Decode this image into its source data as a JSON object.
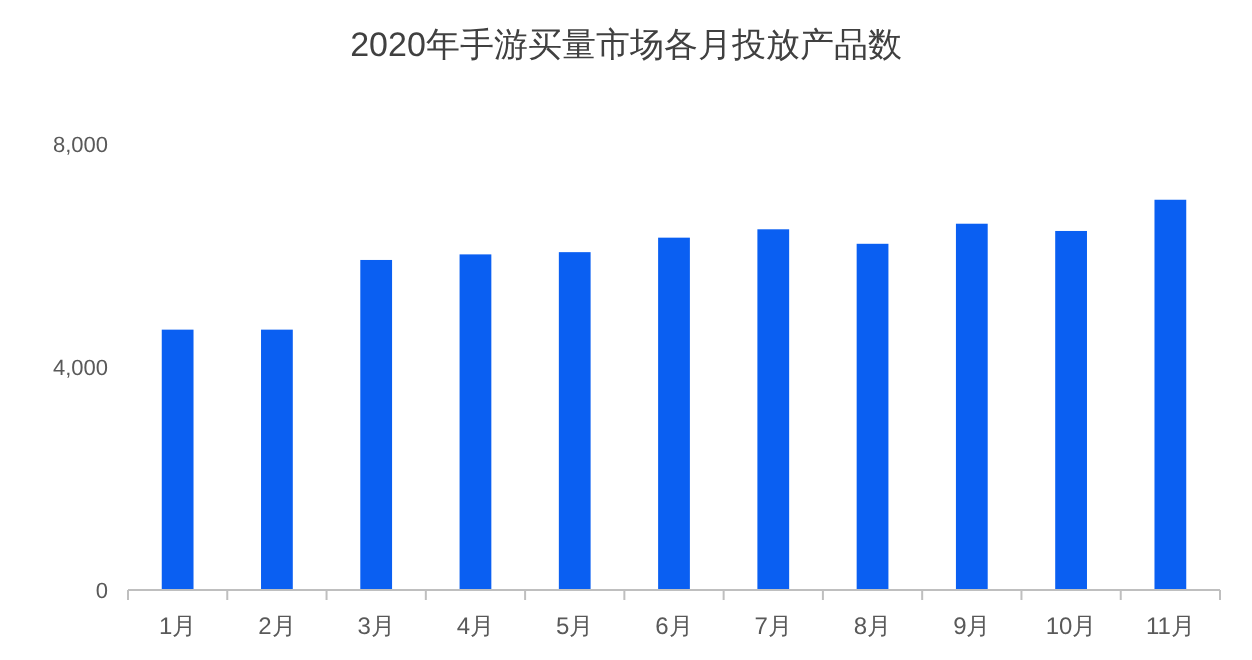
{
  "chart_data": {
    "type": "bar",
    "title": "2020年手游买量市场各月投放产品数",
    "categories": [
      "1月",
      "2月",
      "3月",
      "4月",
      "5月",
      "6月",
      "7月",
      "8月",
      "9月",
      "10月",
      "11月"
    ],
    "values": [
      4670,
      4670,
      5920,
      6020,
      6060,
      6320,
      6470,
      6210,
      6570,
      6440,
      7000
    ],
    "color": "#0a5ff2",
    "ylim": [
      0,
      8000
    ],
    "yticks": [
      {
        "value": 0,
        "label": "0"
      },
      {
        "value": 4000,
        "label": "4,000"
      },
      {
        "value": 8000,
        "label": "8,000"
      }
    ],
    "grid": false
  }
}
